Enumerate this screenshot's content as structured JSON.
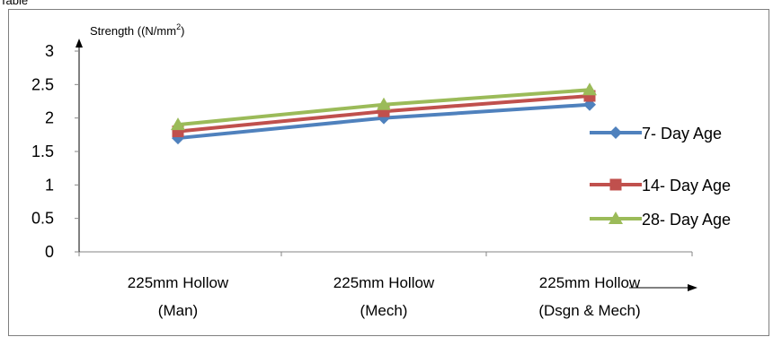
{
  "chart_data": {
    "type": "line",
    "fragment_text": "Table",
    "ylabel": "Strength ((N/mm",
    "ylabel_sup": "2",
    "ylabel_close": ")",
    "ylim": [
      0,
      3
    ],
    "yticks": [
      "3",
      "2.5",
      "2",
      "1.5",
      "1",
      "0.5",
      "0"
    ],
    "yvalues": [
      3,
      2.5,
      2,
      1.5,
      1,
      0.5,
      0
    ],
    "categories": [
      [
        "225mm Hollow",
        "(Man)"
      ],
      [
        "225mm Hollow",
        "(Mech)"
      ],
      [
        "225mm Hollow",
        "(Dsgn & Mech)"
      ]
    ],
    "series": [
      {
        "name": "7- Day Age",
        "values": [
          1.7,
          2.0,
          2.2
        ],
        "color": "#4f81bd",
        "marker": "diamond"
      },
      {
        "name": "14- Day Age",
        "values": [
          1.8,
          2.1,
          2.33
        ],
        "color": "#c0504d",
        "marker": "square"
      },
      {
        "name": "28- Day Age",
        "values": [
          1.9,
          2.2,
          2.42
        ],
        "color": "#9bbb59",
        "marker": "triangle"
      }
    ],
    "grid": false,
    "legend": "right"
  }
}
